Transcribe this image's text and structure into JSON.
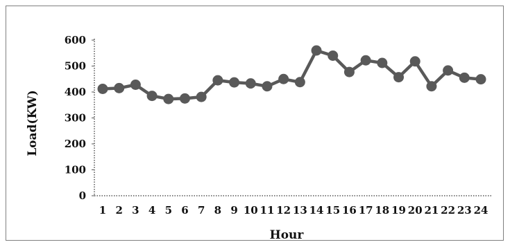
{
  "chart_data": {
    "type": "line",
    "title": "",
    "xlabel": "Hour",
    "ylabel": "Load(KW)",
    "x": [
      "1",
      "2",
      "3",
      "4",
      "5",
      "6",
      "7",
      "8",
      "9",
      "10",
      "11",
      "12",
      "13",
      "14",
      "15",
      "16",
      "17",
      "18",
      "19",
      "20",
      "21",
      "22",
      "23",
      "24"
    ],
    "series": [
      {
        "values": [
          412,
          415,
          428,
          385,
          373,
          375,
          381,
          445,
          437,
          433,
          422,
          450,
          438,
          560,
          540,
          477,
          522,
          512,
          457,
          518,
          422,
          483,
          455,
          449
        ]
      }
    ],
    "yticks": [
      0,
      100,
      200,
      300,
      400,
      500,
      600
    ],
    "ylim": [
      0,
      600
    ],
    "grid": false,
    "legend": "none",
    "colors": {
      "line": "#595959",
      "marker": "#595959",
      "axis": "#555555"
    }
  }
}
